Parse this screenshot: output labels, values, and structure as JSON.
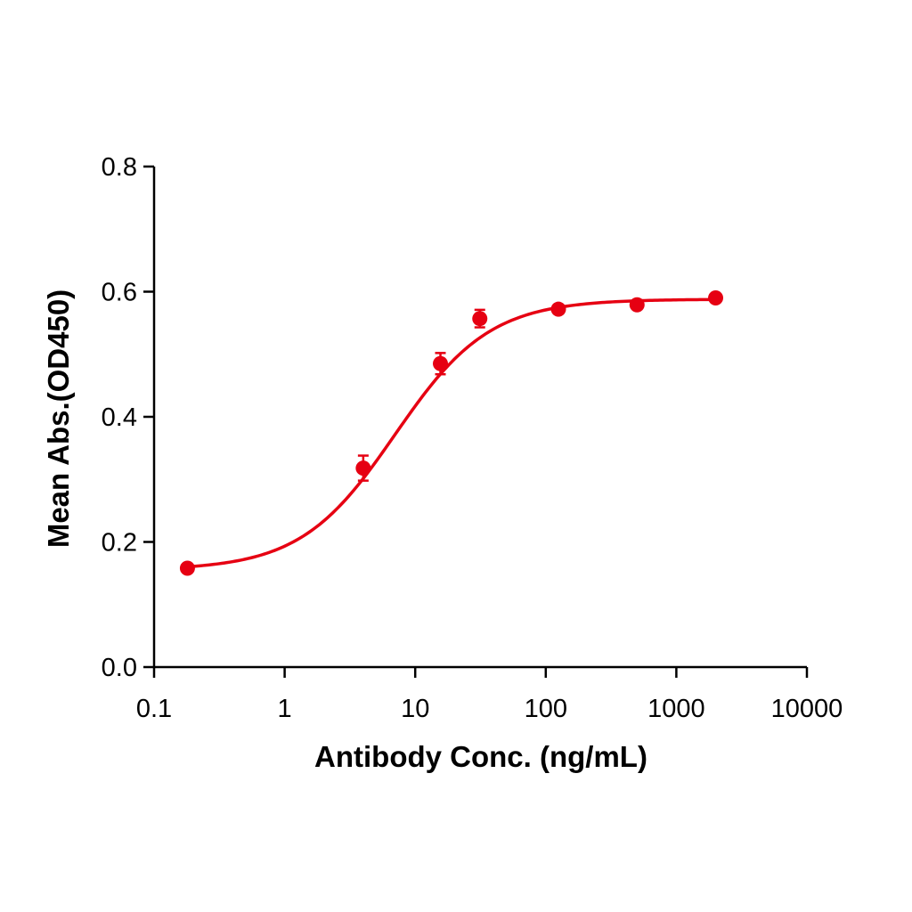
{
  "chart_data": {
    "type": "scatter",
    "title": "",
    "xlabel": "Antibody Conc. (ng/mL)",
    "ylabel": "Mean Abs.(OD450)",
    "x_scale": "log",
    "xlim": [
      0.1,
      10000
    ],
    "ylim": [
      0.0,
      0.8
    ],
    "x_ticks": [
      0.1,
      1,
      10,
      100,
      1000,
      10000
    ],
    "x_tick_labels": [
      "0.1",
      "1",
      "10",
      "100",
      "1000",
      "10000"
    ],
    "y_ticks": [
      0.0,
      0.2,
      0.4,
      0.6,
      0.8
    ],
    "y_tick_labels": [
      "0.0",
      "0.2",
      "0.4",
      "0.6",
      "0.8"
    ],
    "grid": false,
    "legend": false,
    "color": "#e60012",
    "points": [
      {
        "x": 0.18,
        "y": 0.158,
        "err": 0.004
      },
      {
        "x": 4.0,
        "y": 0.318,
        "err": 0.02
      },
      {
        "x": 15.6,
        "y": 0.485,
        "err": 0.017
      },
      {
        "x": 31.25,
        "y": 0.557,
        "err": 0.014
      },
      {
        "x": 125,
        "y": 0.572,
        "err": 0.005
      },
      {
        "x": 500,
        "y": 0.579,
        "err": 0.004
      },
      {
        "x": 2000,
        "y": 0.59,
        "err": 0.003
      }
    ],
    "fit": {
      "model": "4PL",
      "bottom": 0.155,
      "top": 0.588,
      "ec50": 7.0,
      "hill": 1.2,
      "x_range": [
        0.18,
        2000
      ]
    }
  }
}
